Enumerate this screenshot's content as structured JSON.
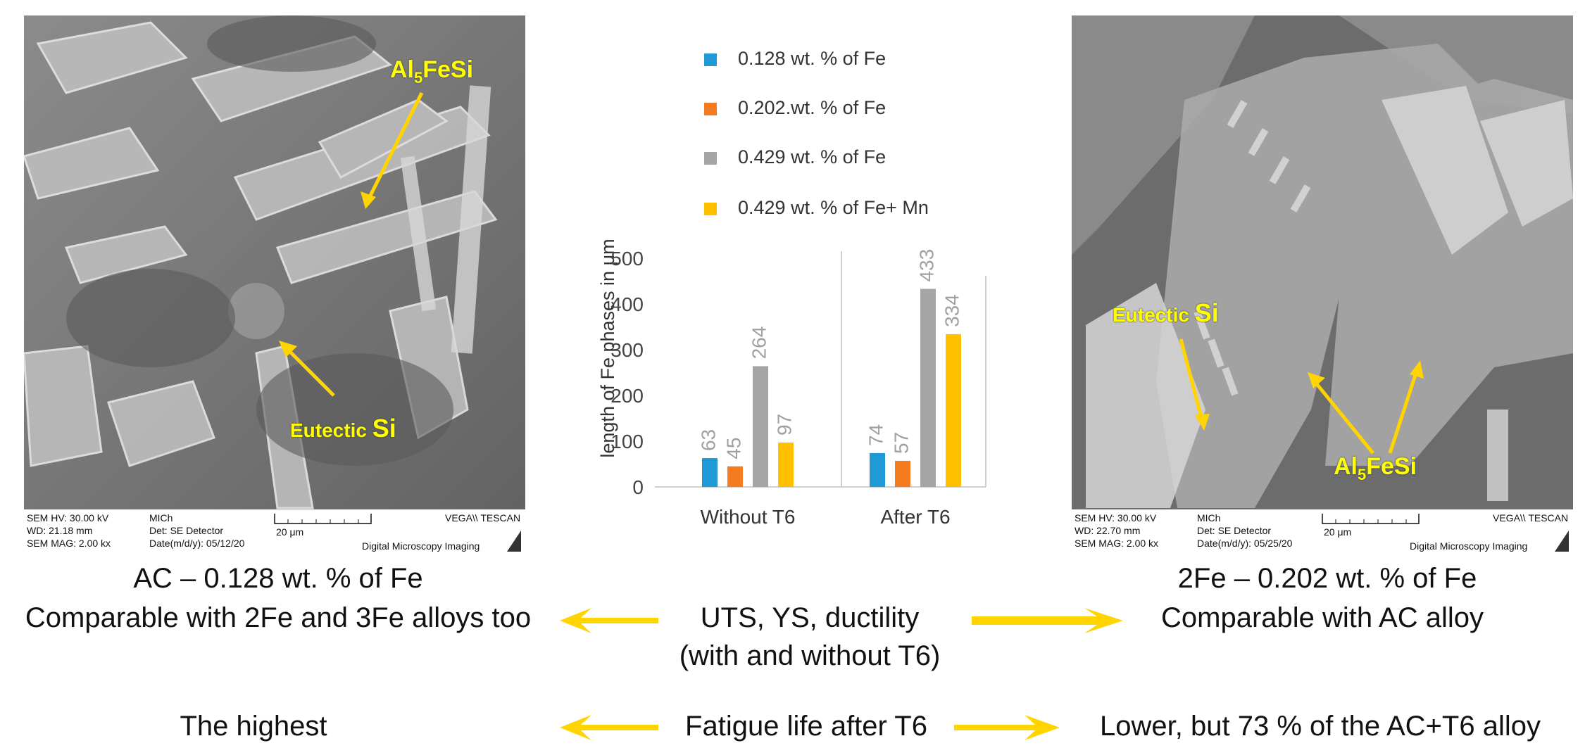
{
  "left_panel": {
    "labels": {
      "phase_main": "Al",
      "phase_sub": "5",
      "phase_rest": "FeSi",
      "eutectic_a": "Eutectic ",
      "eutectic_b": "Si"
    },
    "footer": {
      "hv": "SEM HV: 30.00 kV",
      "wd": "WD: 21.18 mm",
      "mag": "SEM MAG: 2.00 kx",
      "operator": "MICh",
      "det": "Det: SE Detector",
      "date": "Date(m/d/y): 05/12/20",
      "scale": "20 μm",
      "brand": "VEGA\\\\ TESCAN",
      "imaging": "Digital Microscopy Imaging"
    },
    "caption": "AC – 0.128 wt. % of Fe"
  },
  "right_panel": {
    "labels": {
      "eutectic_a": "Eutectic ",
      "eutectic_b": "Si",
      "phase_main": "Al",
      "phase_sub": "5",
      "phase_rest": "FeSi"
    },
    "footer": {
      "hv": "SEM HV: 30.00 kV",
      "wd": "WD: 22.70 mm",
      "mag": "SEM MAG: 2.00 kx",
      "operator": "MICh",
      "det": "Det: SE Detector",
      "date": "Date(m/d/y): 05/25/20",
      "scale": "20 μm",
      "brand": "VEGA\\\\ TESCAN",
      "imaging": "Digital Microscopy Imaging"
    },
    "caption": "2Fe – 0.202 wt. % of Fe"
  },
  "chart_data": {
    "type": "bar",
    "categories": [
      "Without T6",
      "After T6"
    ],
    "series": [
      {
        "name": "0.128 wt. % of Fe",
        "values": [
          63,
          74
        ],
        "color": "#1f9ad6"
      },
      {
        "name": "0.202.wt. % of Fe",
        "values": [
          45,
          57
        ],
        "color": "#f47b20"
      },
      {
        "name": "0.429 wt. % of Fe",
        "values": [
          264,
          433
        ],
        "color": "#a5a5a5"
      },
      {
        "name": "0.429 wt. % of Fe+ Mn",
        "values": [
          97,
          334
        ],
        "color": "#ffc000"
      }
    ],
    "ylabel": "length of Fe phases in μm",
    "ylim": [
      0,
      500
    ],
    "yticks": [
      0,
      100,
      200,
      300,
      400,
      500
    ],
    "legend": "top"
  },
  "texts": {
    "left_comparable": "Comparable with 2Fe and 3Fe alloys too",
    "center_props_1": "UTS, YS, ductility",
    "center_props_2": "(with and without T6)",
    "right_comparable": "Comparable with AC alloy",
    "left_highest": "The highest",
    "center_fatigue": "Fatigue life after T6",
    "right_lower": "Lower, but 73 % of the AC+T6  alloy"
  },
  "colors": {
    "arrow": "#ffd400",
    "label": "#ffff00"
  }
}
